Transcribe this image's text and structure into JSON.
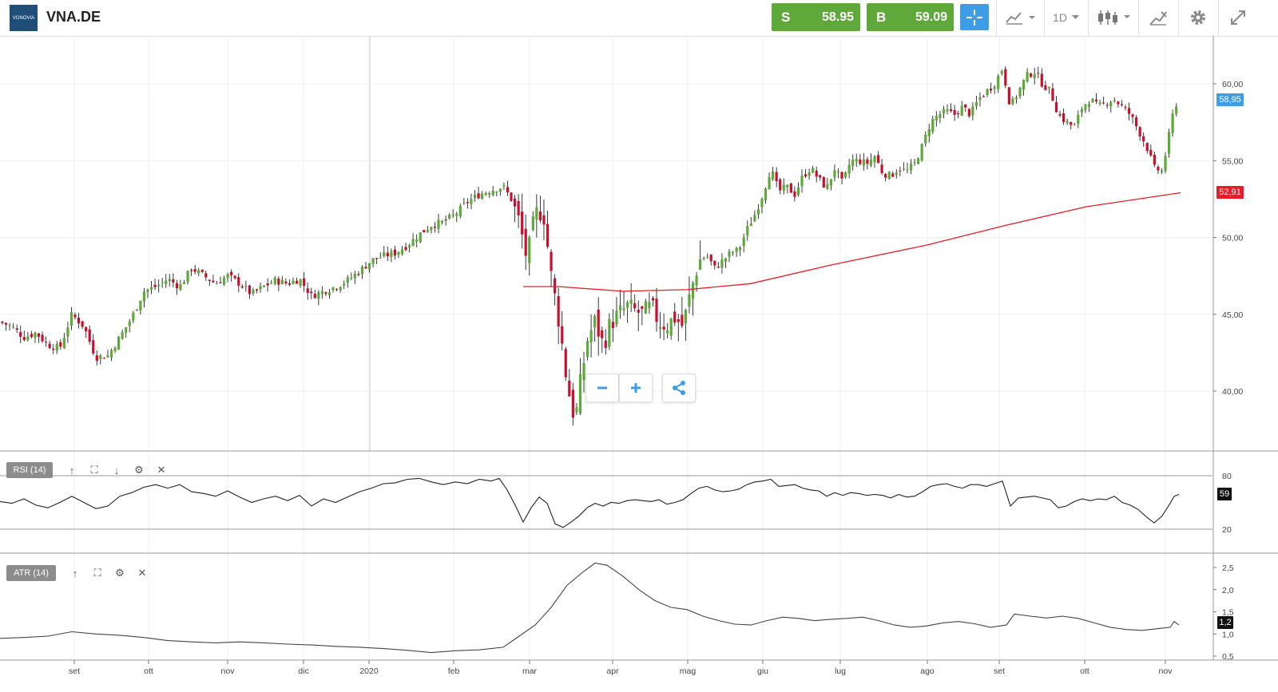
{
  "header": {
    "symbol": "VNA.DE",
    "logo_text": "VONOVIA",
    "sell": {
      "label": "S",
      "price": "58.95"
    },
    "buy": {
      "label": "B",
      "price": "59.09"
    },
    "timeframe": "1D"
  },
  "colors": {
    "up": "#5fa83a",
    "down": "#c8102e",
    "ma": "#e41e26",
    "accent": "#3d9de6",
    "price_tag": "#3d9de6"
  },
  "main_chart": {
    "y_ticks": [
      "60,00",
      "55,00",
      "50,00",
      "45,00",
      "40,00"
    ],
    "last_price_tag": "58,95",
    "ma_tag": "52,91"
  },
  "rsi": {
    "label": "RSI (14)",
    "y_ticks": [
      "80",
      "20"
    ],
    "value_tag": "59"
  },
  "atr": {
    "label": "ATR (14)",
    "y_ticks": [
      "2,5",
      "2,0",
      "1,5",
      "1,0",
      "0,5"
    ],
    "value_tag": "1,2"
  },
  "x_axis": {
    "labels": [
      "set",
      "ott",
      "nov",
      "dic",
      "2020",
      "feb",
      "mar",
      "apr",
      "mag",
      "giu",
      "lug",
      "ago",
      "set",
      "ott",
      "nov"
    ]
  },
  "chart_data": {
    "type": "candlestick",
    "title": "VNA.DE",
    "x_range": [
      "ago 2019",
      "nov 2020"
    ],
    "main": {
      "ylim": [
        37,
        62.5
      ],
      "close_path": [
        [
          0,
          44.5
        ],
        [
          15,
          44.2
        ],
        [
          30,
          43.5
        ],
        [
          45,
          43.8
        ],
        [
          60,
          43.0
        ],
        [
          75,
          42.8
        ],
        [
          90,
          45.0
        ],
        [
          105,
          44.2
        ],
        [
          120,
          42.2
        ],
        [
          135,
          42.3
        ],
        [
          150,
          43.5
        ],
        [
          165,
          44.8
        ],
        [
          180,
          46.5
        ],
        [
          195,
          46.8
        ],
        [
          210,
          47.3
        ],
        [
          225,
          46.8
        ],
        [
          240,
          48.0
        ],
        [
          255,
          47.5
        ],
        [
          270,
          47.0
        ],
        [
          285,
          47.5
        ],
        [
          300,
          47.0
        ],
        [
          315,
          46.3
        ],
        [
          330,
          46.8
        ],
        [
          345,
          47.2
        ],
        [
          360,
          47.0
        ],
        [
          375,
          47.3
        ],
        [
          390,
          46.2
        ],
        [
          405,
          46.5
        ],
        [
          420,
          46.8
        ],
        [
          435,
          47.2
        ],
        [
          450,
          47.8
        ],
        [
          465,
          48.5
        ],
        [
          480,
          48.8
        ],
        [
          495,
          49.0
        ],
        [
          510,
          49.5
        ],
        [
          525,
          50.2
        ],
        [
          540,
          50.8
        ],
        [
          555,
          51.0
        ],
        [
          570,
          51.5
        ],
        [
          585,
          52.3
        ],
        [
          600,
          52.8
        ],
        [
          615,
          53.1
        ],
        [
          630,
          53.3
        ],
        [
          640,
          52.5
        ],
        [
          650,
          51.0
        ],
        [
          660,
          48.5
        ],
        [
          670,
          51.5
        ],
        [
          680,
          51.8
        ],
        [
          690,
          47.5
        ],
        [
          700,
          44.5
        ],
        [
          710,
          40.5
        ],
        [
          720,
          38.0
        ],
        [
          728,
          41.0
        ],
        [
          736,
          43.5
        ],
        [
          745,
          44.5
        ],
        [
          755,
          43.0
        ],
        [
          765,
          44.5
        ],
        [
          775,
          45.0
        ],
        [
          785,
          45.5
        ],
        [
          795,
          45.2
        ],
        [
          805,
          45.0
        ],
        [
          815,
          45.5
        ],
        [
          825,
          44.5
        ],
        [
          835,
          44.3
        ],
        [
          845,
          44.8
        ],
        [
          855,
          44.2
        ],
        [
          865,
          46.5
        ],
        [
          875,
          48.5
        ],
        [
          885,
          48.8
        ],
        [
          895,
          48.0
        ],
        [
          905,
          48.5
        ],
        [
          915,
          49.0
        ],
        [
          925,
          49.2
        ],
        [
          935,
          50.5
        ],
        [
          945,
          51.5
        ],
        [
          955,
          52.8
        ],
        [
          965,
          54.5
        ],
        [
          975,
          53.0
        ],
        [
          985,
          53.3
        ],
        [
          995,
          52.8
        ],
        [
          1005,
          54.0
        ],
        [
          1015,
          54.5
        ],
        [
          1025,
          53.8
        ],
        [
          1035,
          53.2
        ],
        [
          1045,
          54.5
        ],
        [
          1055,
          53.5
        ],
        [
          1065,
          55.0
        ],
        [
          1075,
          55.0
        ],
        [
          1085,
          54.8
        ],
        [
          1095,
          55.3
        ],
        [
          1105,
          54.2
        ],
        [
          1115,
          54.0
        ],
        [
          1125,
          54.5
        ],
        [
          1135,
          54.3
        ],
        [
          1145,
          54.8
        ],
        [
          1155,
          56.0
        ],
        [
          1165,
          57.5
        ],
        [
          1175,
          58.0
        ],
        [
          1185,
          58.2
        ],
        [
          1195,
          58.0
        ],
        [
          1205,
          58.5
        ],
        [
          1215,
          58.0
        ],
        [
          1225,
          59.0
        ],
        [
          1235,
          59.5
        ],
        [
          1245,
          60.0
        ],
        [
          1255,
          61.0
        ],
        [
          1265,
          58.5
        ],
        [
          1275,
          59.5
        ],
        [
          1285,
          60.5
        ],
        [
          1295,
          60.8
        ],
        [
          1305,
          60.0
        ],
        [
          1315,
          59.5
        ],
        [
          1325,
          58.0
        ],
        [
          1335,
          57.5
        ],
        [
          1345,
          57.2
        ],
        [
          1355,
          58.5
        ],
        [
          1365,
          59.0
        ],
        [
          1375,
          58.5
        ],
        [
          1385,
          58.8
        ],
        [
          1395,
          59.0
        ],
        [
          1405,
          58.5
        ],
        [
          1415,
          58.0
        ],
        [
          1425,
          57.0
        ],
        [
          1435,
          56.0
        ],
        [
          1445,
          54.5
        ],
        [
          1455,
          54.3
        ],
        [
          1465,
          57.0
        ],
        [
          1470,
          58.5
        ],
        [
          1476,
          58.95
        ]
      ],
      "ma_line": [
        [
          655,
          46.8
        ],
        [
          700,
          46.8
        ],
        [
          780,
          46.5
        ],
        [
          860,
          46.6
        ],
        [
          940,
          47.0
        ],
        [
          1040,
          48.2
        ],
        [
          1160,
          49.5
        ],
        [
          1260,
          50.8
        ],
        [
          1360,
          52.0
        ],
        [
          1478,
          52.91
        ]
      ]
    },
    "rsi": {
      "ylim": [
        0,
        100
      ],
      "levels": [
        20,
        80
      ],
      "path": [
        [
          0,
          51
        ],
        [
          15,
          49
        ],
        [
          30,
          54
        ],
        [
          45,
          47
        ],
        [
          60,
          44
        ],
        [
          75,
          50
        ],
        [
          90,
          57
        ],
        [
          105,
          50
        ],
        [
          120,
          43
        ],
        [
          135,
          46
        ],
        [
          150,
          57
        ],
        [
          165,
          61
        ],
        [
          180,
          67
        ],
        [
          195,
          70
        ],
        [
          210,
          66
        ],
        [
          225,
          70
        ],
        [
          240,
          62
        ],
        [
          255,
          60
        ],
        [
          270,
          57
        ],
        [
          285,
          63
        ],
        [
          300,
          56
        ],
        [
          315,
          50
        ],
        [
          330,
          54
        ],
        [
          345,
          57
        ],
        [
          360,
          52
        ],
        [
          375,
          58
        ],
        [
          390,
          46
        ],
        [
          405,
          54
        ],
        [
          420,
          50
        ],
        [
          435,
          56
        ],
        [
          450,
          62
        ],
        [
          465,
          66
        ],
        [
          480,
          71
        ],
        [
          495,
          72
        ],
        [
          510,
          76
        ],
        [
          525,
          77
        ],
        [
          540,
          73
        ],
        [
          555,
          70
        ],
        [
          570,
          73
        ],
        [
          585,
          71
        ],
        [
          600,
          76
        ],
        [
          615,
          74
        ],
        [
          625,
          77
        ],
        [
          635,
          64
        ],
        [
          645,
          47
        ],
        [
          655,
          28
        ],
        [
          665,
          44
        ],
        [
          675,
          56
        ],
        [
          685,
          49
        ],
        [
          695,
          26
        ],
        [
          705,
          22
        ],
        [
          715,
          28
        ],
        [
          725,
          35
        ],
        [
          735,
          44
        ],
        [
          745,
          49
        ],
        [
          755,
          46
        ],
        [
          765,
          50
        ],
        [
          775,
          49
        ],
        [
          785,
          52
        ],
        [
          795,
          53
        ],
        [
          805,
          52
        ],
        [
          815,
          51
        ],
        [
          825,
          53
        ],
        [
          835,
          48
        ],
        [
          845,
          50
        ],
        [
          855,
          53
        ],
        [
          865,
          60
        ],
        [
          875,
          66
        ],
        [
          885,
          68
        ],
        [
          895,
          64
        ],
        [
          905,
          62
        ],
        [
          915,
          63
        ],
        [
          925,
          65
        ],
        [
          935,
          70
        ],
        [
          945,
          73
        ],
        [
          955,
          74
        ],
        [
          965,
          76
        ],
        [
          975,
          68
        ],
        [
          985,
          69
        ],
        [
          995,
          70
        ],
        [
          1005,
          66
        ],
        [
          1015,
          64
        ],
        [
          1025,
          63
        ],
        [
          1035,
          57
        ],
        [
          1045,
          61
        ],
        [
          1055,
          58
        ],
        [
          1065,
          61
        ],
        [
          1075,
          60
        ],
        [
          1085,
          58
        ],
        [
          1095,
          59
        ],
        [
          1105,
          58
        ],
        [
          1115,
          55
        ],
        [
          1125,
          59
        ],
        [
          1135,
          56
        ],
        [
          1145,
          57
        ],
        [
          1155,
          62
        ],
        [
          1165,
          68
        ],
        [
          1175,
          70
        ],
        [
          1185,
          71
        ],
        [
          1195,
          68
        ],
        [
          1205,
          66
        ],
        [
          1215,
          70
        ],
        [
          1225,
          70
        ],
        [
          1235,
          68
        ],
        [
          1245,
          71
        ],
        [
          1255,
          74
        ],
        [
          1265,
          46
        ],
        [
          1275,
          55
        ],
        [
          1285,
          56
        ],
        [
          1295,
          57
        ],
        [
          1305,
          55
        ],
        [
          1315,
          53
        ],
        [
          1325,
          44
        ],
        [
          1335,
          46
        ],
        [
          1345,
          51
        ],
        [
          1355,
          54
        ],
        [
          1365,
          52
        ],
        [
          1375,
          54
        ],
        [
          1385,
          53
        ],
        [
          1395,
          57
        ],
        [
          1405,
          50
        ],
        [
          1415,
          47
        ],
        [
          1425,
          42
        ],
        [
          1435,
          34
        ],
        [
          1445,
          27
        ],
        [
          1455,
          35
        ],
        [
          1465,
          49
        ],
        [
          1470,
          57
        ],
        [
          1476,
          59
        ]
      ]
    },
    "atr": {
      "ylim": [
        0.4,
        2.7
      ],
      "path": [
        [
          0,
          0.9
        ],
        [
          30,
          0.92
        ],
        [
          60,
          0.95
        ],
        [
          90,
          1.05
        ],
        [
          120,
          1.0
        ],
        [
          150,
          0.97
        ],
        [
          180,
          0.92
        ],
        [
          210,
          0.85
        ],
        [
          240,
          0.82
        ],
        [
          270,
          0.8
        ],
        [
          300,
          0.82
        ],
        [
          330,
          0.8
        ],
        [
          360,
          0.77
        ],
        [
          390,
          0.75
        ],
        [
          420,
          0.72
        ],
        [
          450,
          0.7
        ],
        [
          480,
          0.67
        ],
        [
          510,
          0.63
        ],
        [
          540,
          0.58
        ],
        [
          570,
          0.62
        ],
        [
          600,
          0.64
        ],
        [
          630,
          0.7
        ],
        [
          650,
          0.95
        ],
        [
          670,
          1.2
        ],
        [
          690,
          1.6
        ],
        [
          710,
          2.1
        ],
        [
          730,
          2.4
        ],
        [
          745,
          2.6
        ],
        [
          760,
          2.55
        ],
        [
          780,
          2.3
        ],
        [
          800,
          2.0
        ],
        [
          820,
          1.75
        ],
        [
          840,
          1.6
        ],
        [
          860,
          1.55
        ],
        [
          880,
          1.4
        ],
        [
          900,
          1.3
        ],
        [
          920,
          1.22
        ],
        [
          940,
          1.2
        ],
        [
          960,
          1.3
        ],
        [
          980,
          1.38
        ],
        [
          1000,
          1.35
        ],
        [
          1020,
          1.3
        ],
        [
          1040,
          1.33
        ],
        [
          1060,
          1.35
        ],
        [
          1080,
          1.38
        ],
        [
          1100,
          1.3
        ],
        [
          1120,
          1.2
        ],
        [
          1140,
          1.15
        ],
        [
          1160,
          1.18
        ],
        [
          1180,
          1.25
        ],
        [
          1200,
          1.28
        ],
        [
          1220,
          1.23
        ],
        [
          1240,
          1.15
        ],
        [
          1260,
          1.2
        ],
        [
          1270,
          1.45
        ],
        [
          1290,
          1.4
        ],
        [
          1310,
          1.36
        ],
        [
          1330,
          1.4
        ],
        [
          1350,
          1.35
        ],
        [
          1370,
          1.25
        ],
        [
          1390,
          1.15
        ],
        [
          1410,
          1.1
        ],
        [
          1430,
          1.08
        ],
        [
          1450,
          1.12
        ],
        [
          1465,
          1.15
        ],
        [
          1470,
          1.28
        ],
        [
          1476,
          1.2
        ]
      ]
    }
  }
}
